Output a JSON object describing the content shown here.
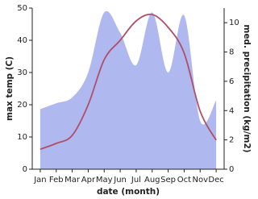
{
  "chart_data": {
    "type": "line-area",
    "categories": [
      "Jan",
      "Feb",
      "Mar",
      "Apr",
      "May",
      "Jun",
      "Jul",
      "Aug",
      "Sep",
      "Oct",
      "Nov",
      "Dec"
    ],
    "x_label": "date (month)",
    "y_label": "max temp (C)",
    "y2_label": "med. precipitation (kg/m2)",
    "series": [
      {
        "type": "line",
        "color": "#b05068",
        "values": [
          6.2,
          8,
          10.5,
          20,
          34,
          40,
          46,
          48,
          44,
          36,
          18,
          9
        ]
      },
      {
        "type": "area",
        "color": "#b0b8f0",
        "axis": "y2",
        "values": [
          4.1,
          4.5,
          4.9,
          6.6,
          10.7,
          9.3,
          7.1,
          10.7,
          6.6,
          10.5,
          3.3,
          4.7
        ]
      }
    ],
    "ylim": [
      0,
      50
    ],
    "yticks": [
      0,
      10,
      20,
      30,
      40,
      50
    ],
    "y2lim": [
      0,
      11
    ],
    "y2ticks": [
      0,
      2,
      4,
      6,
      8,
      10
    ]
  }
}
